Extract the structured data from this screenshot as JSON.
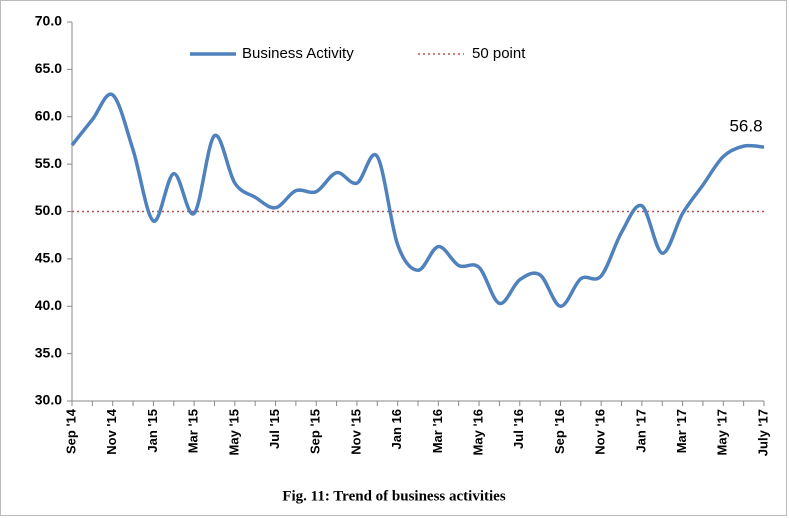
{
  "chart_data": {
    "type": "line",
    "title": "Fig. 11: Trend of business activities",
    "categories": [
      "Sep '14",
      null,
      "Nov '14",
      null,
      "Jan '15",
      null,
      "Mar '15",
      null,
      "May '15",
      null,
      "Jul '15",
      null,
      "Sep '15",
      null,
      "Nov '15",
      null,
      "Jan 16",
      null,
      "Mar '16",
      null,
      "May '16",
      null,
      "Jul '16",
      null,
      "Sep '16",
      null,
      "Nov '16",
      null,
      "Jan '17",
      null,
      "Mar '17",
      null,
      "May '17",
      null,
      "July '17"
    ],
    "series": [
      {
        "name": "Business Activity",
        "color": "#4f81bd",
        "values": [
          57.0,
          59.7,
          62.3,
          56.5,
          49.0,
          54.0,
          49.8,
          58.0,
          53.0,
          51.5,
          50.4,
          52.2,
          52.1,
          54.1,
          53.0,
          55.8,
          46.5,
          43.8,
          46.3,
          44.3,
          44.1,
          40.3,
          42.8,
          43.3,
          40.0,
          42.9,
          43.2,
          47.8,
          50.6,
          45.6,
          49.8,
          52.8,
          55.8,
          56.9,
          56.8
        ]
      }
    ],
    "reference": {
      "name": "50 point",
      "value": 50,
      "color": "#c0504d"
    },
    "ylim": [
      30,
      70
    ],
    "yticks": [
      {
        "value": 30,
        "label": "30.0"
      },
      {
        "value": 35,
        "label": "35.0"
      },
      {
        "value": 40,
        "label": "40.0"
      },
      {
        "value": 45,
        "label": "45.0"
      },
      {
        "value": 50,
        "label": "50.0"
      },
      {
        "value": 55,
        "label": "55.0"
      },
      {
        "value": 60,
        "label": "60.0"
      },
      {
        "value": 65,
        "label": "65.0"
      },
      {
        "value": 70,
        "label": "70.0"
      }
    ]
  }
}
